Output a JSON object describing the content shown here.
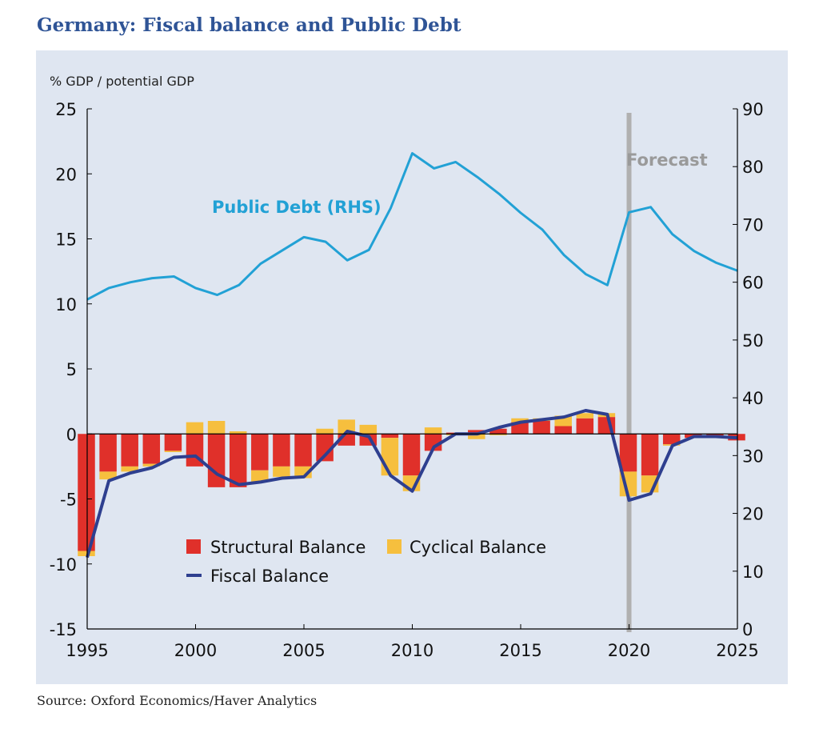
{
  "title": "Germany: Fiscal balance and Public Debt",
  "source": "Source: Oxford Economics/Haver Analytics",
  "colors": {
    "structural": "#e0302a",
    "cyclical": "#f6bf3e",
    "fiscal": "#2e3f8f",
    "debt": "#22a1d5",
    "forecast_line": "#b0b0b0",
    "forecast_text": "#9a9a9a"
  },
  "chart_data": {
    "type": "bar",
    "units_label": "% GDP / potential GDP",
    "x": [
      1995,
      1996,
      1997,
      1998,
      1999,
      2000,
      2001,
      2002,
      2003,
      2004,
      2005,
      2006,
      2007,
      2008,
      2009,
      2010,
      2011,
      2012,
      2013,
      2014,
      2015,
      2016,
      2017,
      2018,
      2019,
      2020,
      2021,
      2022,
      2023,
      2024,
      2025
    ],
    "xticks": [
      "1995",
      "2000",
      "2005",
      "2010",
      "2015",
      "2020",
      "2025"
    ],
    "xlim": [
      1995,
      2025
    ],
    "y_left": {
      "ticks": [
        "25",
        "20",
        "15",
        "10",
        "5",
        "0",
        "-5",
        "-10",
        "-15"
      ],
      "lim": [
        -15,
        25
      ]
    },
    "y_right": {
      "ticks": [
        "90",
        "80",
        "70",
        "60",
        "50",
        "40",
        "30",
        "20",
        "10",
        "0"
      ],
      "lim": [
        0,
        90
      ]
    },
    "series": [
      {
        "name": "Structural Balance",
        "kind": "bar",
        "values": [
          -9.0,
          -2.9,
          -2.5,
          -2.3,
          -1.3,
          -2.5,
          -4.1,
          -4.1,
          -2.8,
          -2.5,
          -2.5,
          -2.1,
          -0.9,
          -0.9,
          -0.3,
          -3.2,
          -1.3,
          0.1,
          0.3,
          0.4,
          0.9,
          1.0,
          0.6,
          1.2,
          1.3,
          -2.9,
          -3.2,
          -0.8,
          -0.3,
          -0.3,
          -0.5
        ]
      },
      {
        "name": "Cyclical Balance",
        "kind": "bar",
        "values": [
          -0.4,
          -0.6,
          -0.4,
          -0.2,
          -0.1,
          0.9,
          1.0,
          0.2,
          -0.9,
          -0.8,
          -0.9,
          0.4,
          1.1,
          0.7,
          -2.9,
          -1.2,
          0.5,
          -0.1,
          -0.4,
          -0.1,
          0.3,
          0.2,
          0.8,
          0.4,
          0.3,
          -1.9,
          -1.3,
          -0.1,
          0.0,
          0.0,
          0.0
        ]
      },
      {
        "name": "Fiscal Balance",
        "kind": "line",
        "axis": "left",
        "values": [
          -9.5,
          -3.6,
          -3.0,
          -2.6,
          -1.8,
          -1.7,
          -3.1,
          -3.9,
          -3.7,
          -3.4,
          -3.3,
          -1.6,
          0.2,
          -0.2,
          -3.2,
          -4.4,
          -1.0,
          0.0,
          0.0,
          0.5,
          0.9,
          1.1,
          1.3,
          1.8,
          1.5,
          -5.1,
          -4.6,
          -0.9,
          -0.2,
          -0.2,
          -0.3
        ]
      },
      {
        "name": "Public Debt (RHS)",
        "kind": "line",
        "axis": "right",
        "values": [
          57,
          59,
          60,
          60.7,
          61,
          59,
          57.8,
          59.5,
          63.2,
          65.5,
          67.8,
          67,
          63.8,
          65.6,
          72.8,
          82.3,
          79.7,
          80.8,
          78.2,
          75.3,
          72,
          69.1,
          64.7,
          61.4,
          59.5,
          72.1,
          73,
          68.3,
          65.4,
          63.4,
          62
        ]
      }
    ],
    "annotations": {
      "forecast_label": "Forecast",
      "forecast_x": 2020,
      "debt_label": "Public Debt (RHS)"
    },
    "legend": {
      "placement": "lower-center",
      "items": [
        "Structural Balance",
        "Cyclical Balance",
        "Fiscal Balance"
      ]
    },
    "grid": false
  }
}
